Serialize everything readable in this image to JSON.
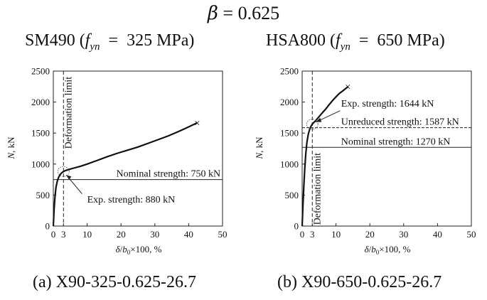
{
  "title": {
    "symbol": "β",
    "equals": "=",
    "value": "0.625"
  },
  "chart_data": [
    {
      "type": "line",
      "material_title": {
        "steel": "SM490",
        "open": "(",
        "f": "f",
        "sub": "yn",
        "eq": "=",
        "value": "325 MPa",
        "close": ")"
      },
      "subcaption": "(a)  X90-325-0.625-26.7",
      "xlabel": {
        "delta": "δ",
        "slash": "/",
        "b": "b",
        "zero": "0",
        "tail": "×100, %"
      },
      "ylabel": {
        "n": "N",
        "tail": ", kN"
      },
      "xlim": [
        0,
        50
      ],
      "ylim": [
        0,
        2500
      ],
      "xticks": [
        "0",
        "3",
        "10",
        "20",
        "30",
        "40",
        "50"
      ],
      "xtick_values": [
        0,
        3,
        10,
        20,
        30,
        40,
        50
      ],
      "yticks": [
        "0",
        "500",
        "1000",
        "1500",
        "2000",
        "2500"
      ],
      "ytick_values": [
        0,
        500,
        1000,
        1500,
        2000,
        2500
      ],
      "curve": {
        "x": [
          0,
          0.2,
          0.5,
          0.8,
          1.2,
          1.6,
          2.0,
          2.5,
          3.0,
          3.5,
          4.0,
          5.0,
          6.0,
          8.0,
          10.0,
          13.0,
          16.0,
          19.0,
          22.0,
          25.0,
          28.0,
          31.0,
          34.0,
          37.0,
          40.0,
          42.5
        ],
        "y": [
          0,
          250,
          480,
          630,
          730,
          790,
          830,
          860,
          880,
          893,
          903,
          920,
          935,
          965,
          1000,
          1060,
          1120,
          1175,
          1225,
          1275,
          1335,
          1395,
          1455,
          1525,
          1600,
          1665
        ]
      },
      "end_marker": {
        "x": 42.5,
        "y": 1665,
        "symbol": "×"
      },
      "deformation_limit": {
        "x": 3,
        "label": "Deformation limit"
      },
      "nominal_line": {
        "y": 750,
        "label": "Nominal strength: 750 kN"
      },
      "exp_point": {
        "x": 3,
        "y": 880,
        "label": "Exp. strength: 880 kN"
      }
    },
    {
      "type": "line",
      "material_title": {
        "steel": "HSA800",
        "open": "(",
        "f": "f",
        "sub": "yn",
        "eq": "=",
        "value": "650 MPa",
        "close": ")"
      },
      "subcaption": "(b)  X90-650-0.625-26.7",
      "xlabel": {
        "delta": "δ",
        "slash": "/",
        "b": "b",
        "zero": "0",
        "tail": "×100, %"
      },
      "ylabel": {
        "n": "N",
        "tail": ", kN"
      },
      "xlim": [
        0,
        50
      ],
      "ylim": [
        0,
        2500
      ],
      "xticks": [
        "0",
        "3",
        "10",
        "20",
        "30",
        "40",
        "50"
      ],
      "xtick_values": [
        0,
        3,
        10,
        20,
        30,
        40,
        50
      ],
      "yticks": [
        "0",
        "500",
        "1000",
        "1500",
        "2000",
        "2500"
      ],
      "ytick_values": [
        0,
        500,
        1000,
        1500,
        2000,
        2500
      ],
      "curve": {
        "x": [
          0,
          0.2,
          0.5,
          0.8,
          1.1,
          1.4,
          1.8,
          2.2,
          2.6,
          3.0,
          3.5,
          4.0,
          5.0,
          6.0,
          7.0,
          8.0,
          9.0,
          10.0,
          11.0,
          12.0,
          13.0,
          13.5
        ],
        "y": [
          0,
          300,
          650,
          950,
          1180,
          1350,
          1480,
          1560,
          1610,
          1644,
          1675,
          1700,
          1765,
          1830,
          1890,
          1960,
          2025,
          2085,
          2140,
          2180,
          2225,
          2245
        ]
      },
      "end_marker": {
        "x": 13.5,
        "y": 2245,
        "symbol": "×"
      },
      "deformation_limit": {
        "x": 3,
        "label": "Deformation limit"
      },
      "nominal_line": {
        "y": 1270,
        "label": "Nominal strength: 1270 kN"
      },
      "unreduced_line": {
        "y": 1587,
        "label": "Unreduced strength: 1587 kN"
      },
      "exp_point": {
        "x": 3,
        "y": 1644,
        "label": "Exp. strength: 1644 kN"
      }
    }
  ]
}
